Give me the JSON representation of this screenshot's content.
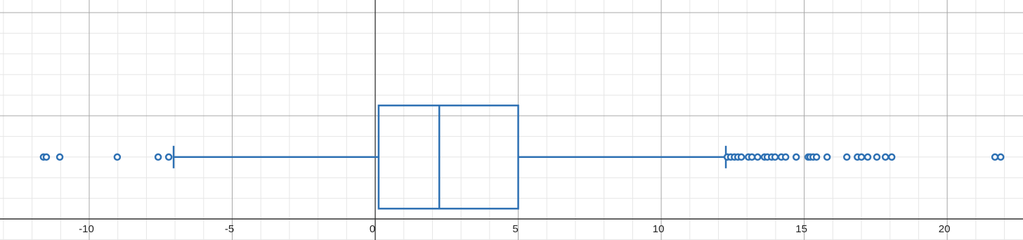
{
  "chart_data": {
    "type": "box",
    "orientation": "horizontal",
    "xlim": [
      -13.12,
      22.65
    ],
    "xticks": [
      -10,
      -5,
      0,
      5,
      10,
      15,
      20
    ],
    "grid": true,
    "series": [
      {
        "color": "#2d70b3",
        "whisker_low": -7.05,
        "q1": 0.12,
        "median": 2.24,
        "q3": 5.0,
        "whisker_high": 12.26,
        "outliers": [
          -11.6,
          -11.5,
          -11.03,
          -9.02,
          -7.59,
          -7.22,
          12.31,
          12.43,
          12.56,
          12.68,
          12.8,
          13.05,
          13.17,
          13.37,
          13.61,
          13.71,
          13.86,
          13.98,
          14.2,
          14.35,
          14.72,
          15.14,
          15.21,
          15.31,
          15.43,
          15.8,
          16.49,
          16.86,
          17.0,
          17.22,
          17.54,
          17.84,
          18.06,
          21.67,
          21.87
        ]
      }
    ]
  }
}
